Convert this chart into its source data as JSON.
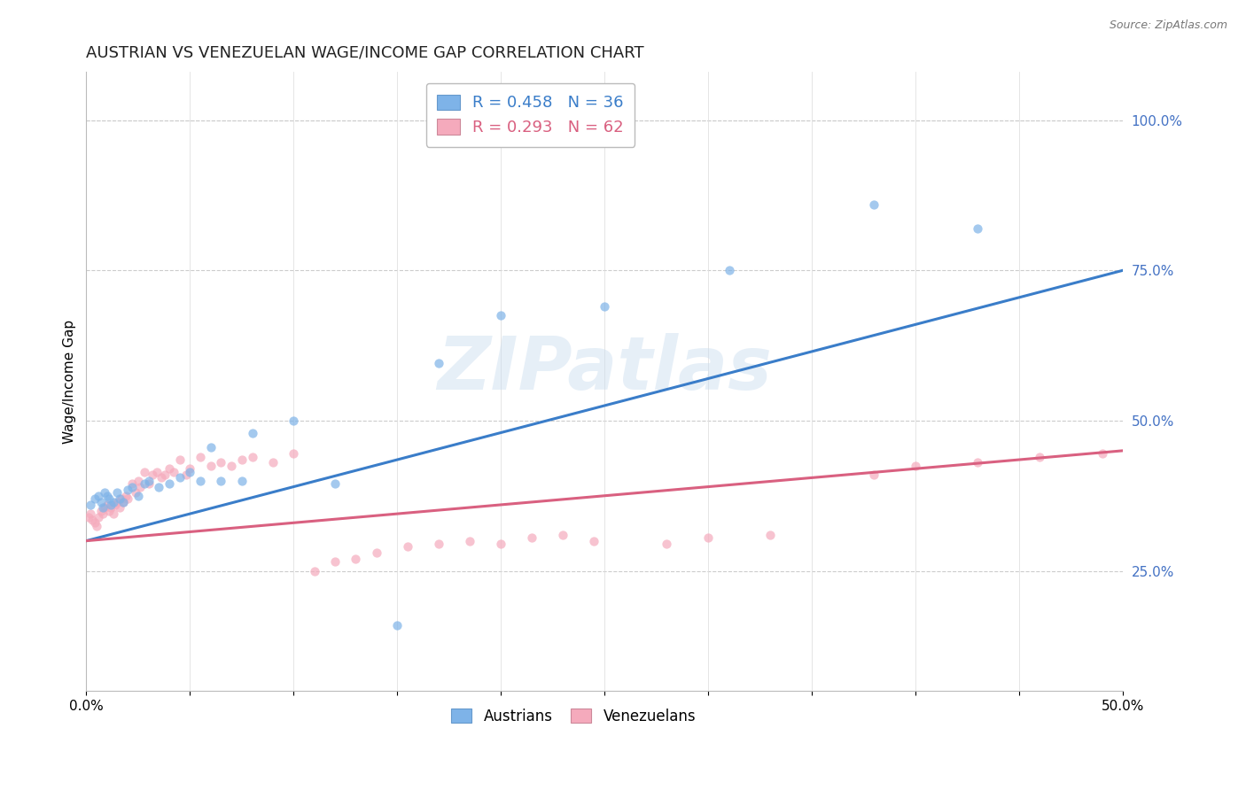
{
  "title": "AUSTRIAN VS VENEZUELAN WAGE/INCOME GAP CORRELATION CHART",
  "source": "Source: ZipAtlas.com",
  "ylabel": "Wage/Income Gap",
  "right_ytick_vals": [
    0.25,
    0.5,
    0.75,
    1.0
  ],
  "right_ytick_labels": [
    "25.0%",
    "50.0%",
    "75.0%",
    "100.0%"
  ],
  "watermark": "ZIPatlas",
  "legend_blue_r": "R = 0.458",
  "legend_blue_n": "N = 36",
  "legend_pink_r": "R = 0.293",
  "legend_pink_n": "N = 62",
  "blue_scatter_color": "#7EB3E8",
  "pink_scatter_color": "#F5AABC",
  "blue_line_color": "#3A7DC9",
  "pink_line_color": "#D96080",
  "austrians_x": [
    0.002,
    0.004,
    0.006,
    0.007,
    0.008,
    0.009,
    0.01,
    0.011,
    0.012,
    0.013,
    0.015,
    0.016,
    0.018,
    0.02,
    0.022,
    0.025,
    0.028,
    0.03,
    0.035,
    0.04,
    0.045,
    0.05,
    0.055,
    0.06,
    0.065,
    0.075,
    0.08,
    0.1,
    0.12,
    0.15,
    0.17,
    0.2,
    0.25,
    0.31,
    0.38,
    0.43
  ],
  "austrians_y": [
    0.36,
    0.37,
    0.375,
    0.365,
    0.355,
    0.38,
    0.375,
    0.37,
    0.36,
    0.365,
    0.38,
    0.37,
    0.365,
    0.385,
    0.39,
    0.375,
    0.395,
    0.4,
    0.39,
    0.395,
    0.405,
    0.415,
    0.4,
    0.455,
    0.4,
    0.4,
    0.48,
    0.5,
    0.395,
    0.16,
    0.595,
    0.675,
    0.69,
    0.75,
    0.86,
    0.82
  ],
  "venezuelans_x": [
    0.001,
    0.002,
    0.003,
    0.004,
    0.005,
    0.006,
    0.007,
    0.008,
    0.009,
    0.01,
    0.011,
    0.012,
    0.013,
    0.014,
    0.015,
    0.016,
    0.017,
    0.018,
    0.019,
    0.02,
    0.022,
    0.024,
    0.025,
    0.026,
    0.028,
    0.03,
    0.032,
    0.034,
    0.036,
    0.038,
    0.04,
    0.042,
    0.045,
    0.048,
    0.05,
    0.055,
    0.06,
    0.065,
    0.07,
    0.075,
    0.08,
    0.09,
    0.1,
    0.11,
    0.12,
    0.13,
    0.14,
    0.155,
    0.17,
    0.185,
    0.2,
    0.215,
    0.23,
    0.245,
    0.28,
    0.3,
    0.33,
    0.38,
    0.4,
    0.43,
    0.46,
    0.49
  ],
  "venezuelans_y": [
    0.34,
    0.345,
    0.335,
    0.33,
    0.325,
    0.34,
    0.35,
    0.345,
    0.355,
    0.36,
    0.35,
    0.355,
    0.345,
    0.36,
    0.365,
    0.355,
    0.37,
    0.365,
    0.375,
    0.37,
    0.395,
    0.38,
    0.4,
    0.39,
    0.415,
    0.395,
    0.41,
    0.415,
    0.405,
    0.41,
    0.42,
    0.415,
    0.435,
    0.41,
    0.42,
    0.44,
    0.425,
    0.43,
    0.425,
    0.435,
    0.44,
    0.43,
    0.445,
    0.25,
    0.265,
    0.27,
    0.28,
    0.29,
    0.295,
    0.3,
    0.295,
    0.305,
    0.31,
    0.3,
    0.295,
    0.305,
    0.31,
    0.41,
    0.425,
    0.43,
    0.44,
    0.445
  ],
  "blue_trend_x": [
    0.0,
    0.5
  ],
  "blue_trend_y": [
    0.3,
    0.75
  ],
  "pink_trend_x": [
    0.0,
    0.5
  ],
  "pink_trend_y": [
    0.3,
    0.45
  ],
  "xlim": [
    0.0,
    0.5
  ],
  "ylim": [
    0.05,
    1.08
  ],
  "background_color": "#FFFFFF",
  "grid_color": "#CCCCCC",
  "title_fontsize": 13,
  "axis_label_fontsize": 11,
  "tick_fontsize": 11,
  "right_tick_color": "#4472C4",
  "scatter_size": 55,
  "scatter_alpha": 0.7
}
